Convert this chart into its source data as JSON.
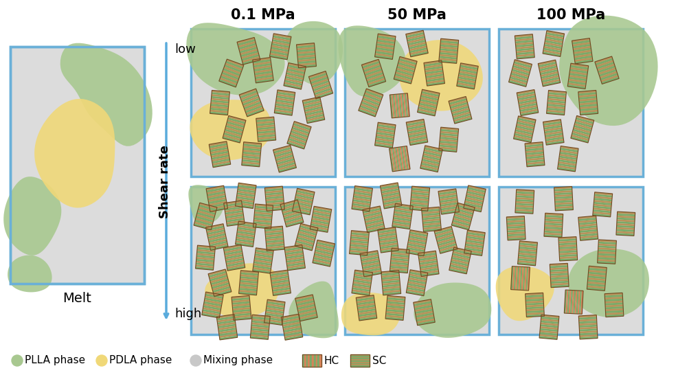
{
  "title_pressures": [
    "0.1 MPa",
    "50 MPa",
    "100 MPa"
  ],
  "colors": {
    "plla": "#a8c890",
    "pdla": "#f0d878",
    "mixing": "#dcdcdc",
    "background": "#ffffff",
    "box_border": "#6ab0d8",
    "sc_brown": "#b8925a",
    "sc_green": "#7aaa68",
    "hc_green": "#7aaa68",
    "hc_orange": "#d4845a"
  }
}
